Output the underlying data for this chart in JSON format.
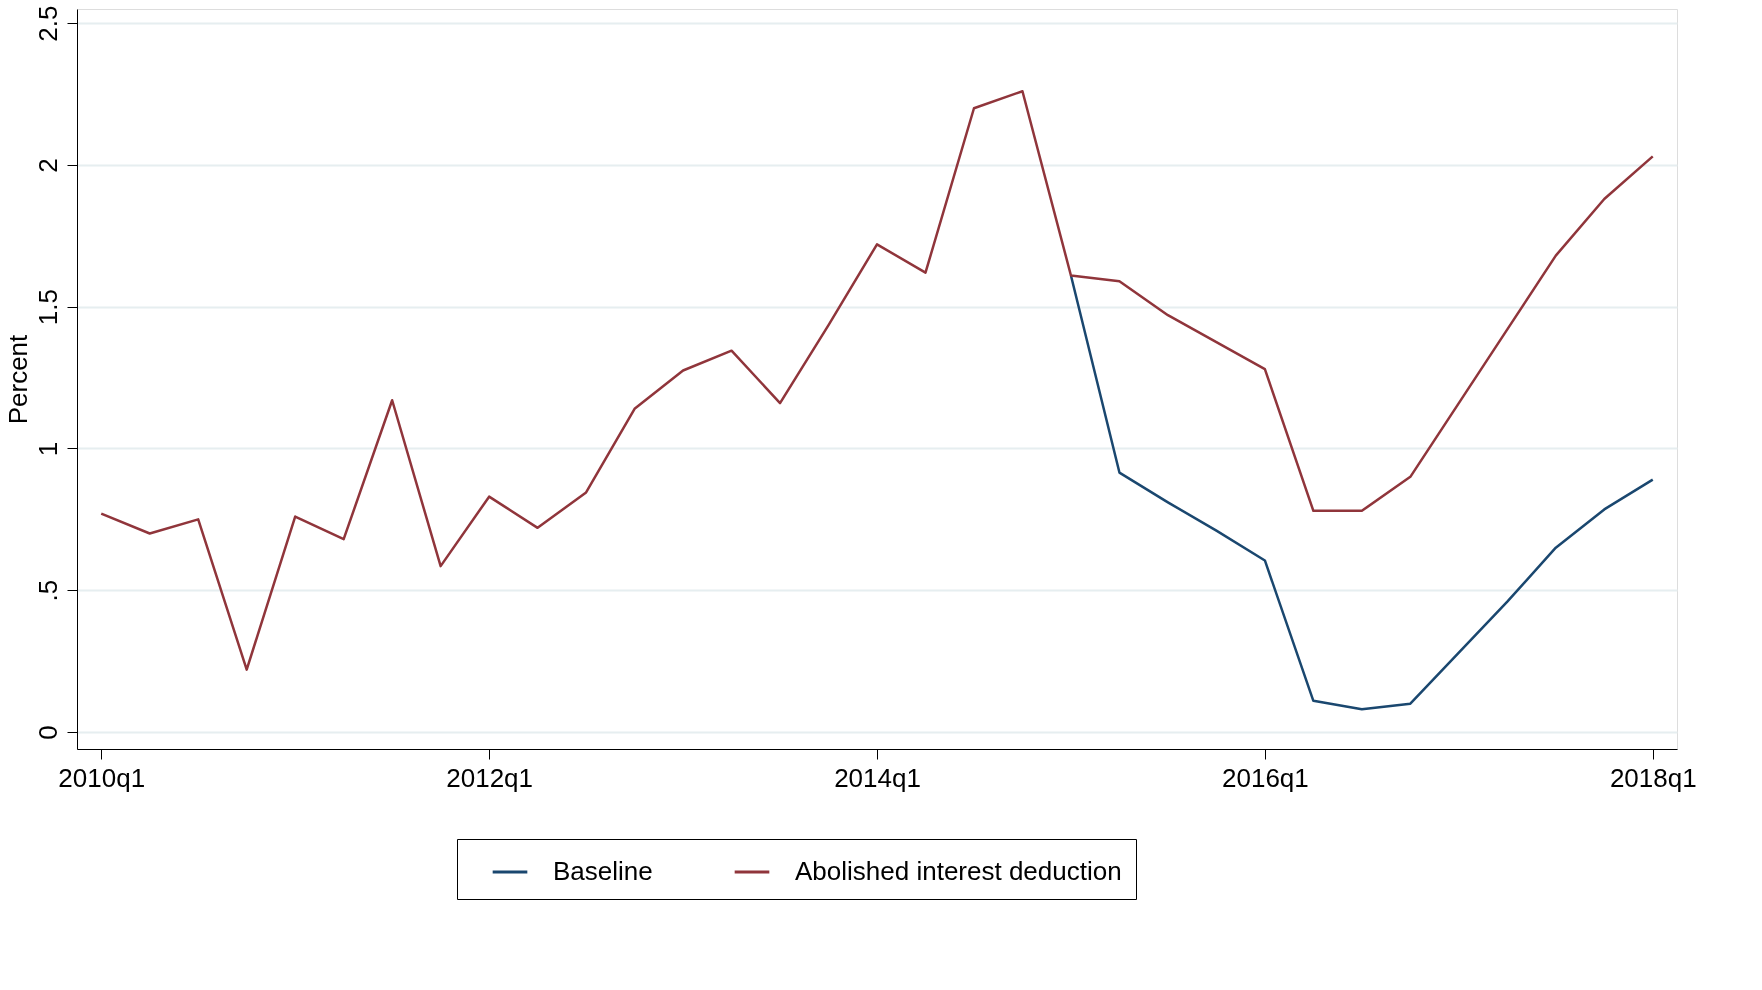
{
  "chart_data": {
    "type": "line",
    "ylabel": "Percent",
    "categories": [
      "2010q1",
      null,
      null,
      null,
      null,
      null,
      null,
      null,
      "2012q1",
      null,
      null,
      null,
      null,
      null,
      null,
      null,
      "2014q1",
      null,
      null,
      null,
      null,
      null,
      null,
      null,
      "2016q1",
      null,
      null,
      null,
      null,
      null,
      null,
      null,
      "2018q1"
    ],
    "series": [
      {
        "name": "Baseline",
        "color": "#1a476f",
        "values": [
          null,
          null,
          null,
          null,
          null,
          null,
          null,
          null,
          null,
          null,
          null,
          null,
          null,
          null,
          null,
          null,
          null,
          null,
          null,
          null,
          1.61,
          0.915,
          0.81,
          0.71,
          0.605,
          0.11,
          0.08,
          0.1,
          0.28,
          0.46,
          0.65,
          0.785,
          0.89
        ]
      },
      {
        "name": "Abolished interest deduction",
        "color": "#90353b",
        "values": [
          0.77,
          0.7,
          0.75,
          0.22,
          0.76,
          0.68,
          1.17,
          0.585,
          0.83,
          0.72,
          0.845,
          1.14,
          1.275,
          1.345,
          1.16,
          1.435,
          1.72,
          1.62,
          2.2,
          2.26,
          1.61,
          1.59,
          1.47,
          1.375,
          1.28,
          0.78,
          0.78,
          0.9,
          1.16,
          1.42,
          1.68,
          1.88,
          2.03
        ]
      }
    ],
    "ylim": [
      -0.06,
      2.55
    ],
    "yticks": [
      0,
      {
        "value": 0.5,
        "label": ".5"
      },
      1,
      1.5,
      2,
      2.5
    ],
    "grid": "y",
    "legend": "bottom",
    "marker": "none",
    "line_style": "solid"
  }
}
